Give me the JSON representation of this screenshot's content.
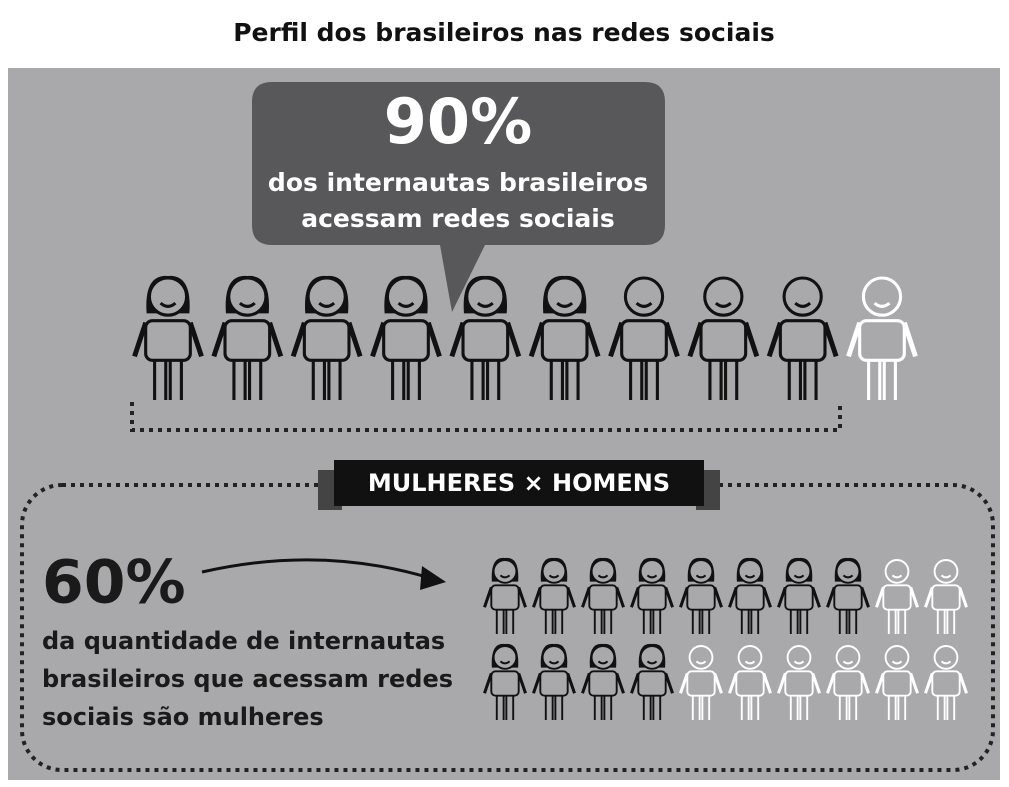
{
  "title": "Perfil dos brasileiros nas redes sociais",
  "headline": {
    "stat": {
      "value": 90,
      "label": "90%"
    },
    "lines": [
      "dos internautas brasileiros",
      "acessam redes sociais"
    ]
  },
  "badge": "MULHERES × HOMENS",
  "women": {
    "stat": {
      "value": 60,
      "label": "60%"
    },
    "lines": [
      "da quantidade de internautas",
      "brasileiros que acessam redes",
      "sociais são mulheres"
    ]
  }
}
